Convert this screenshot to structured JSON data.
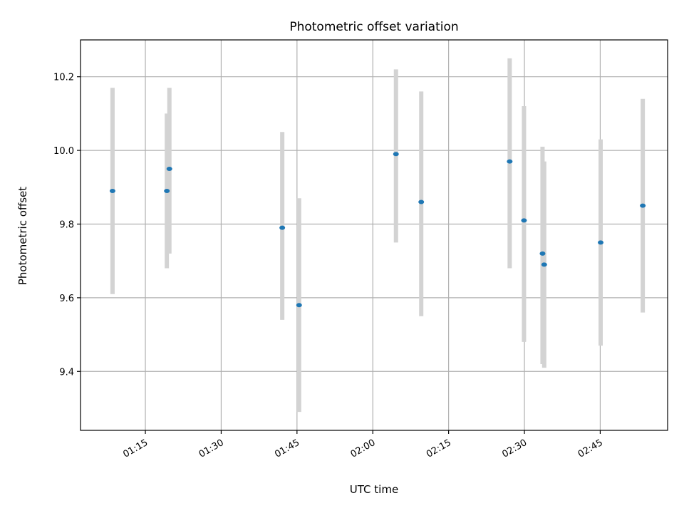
{
  "chart_data": {
    "type": "scatter",
    "title": "Photometric offset variation",
    "xlabel": "UTC time",
    "ylabel": "Photometric offset",
    "x_tick_labels": [
      "01:15",
      "01:30",
      "01:45",
      "02:00",
      "02:15",
      "02:30",
      "02:45"
    ],
    "y_tick_labels": [
      "9.4",
      "9.6",
      "9.8",
      "10.0",
      "10.2"
    ],
    "y_ticks": [
      9.4,
      9.6,
      9.8,
      10.0,
      10.2
    ],
    "xlim": [
      "01:02:10",
      "02:58:20"
    ],
    "ylim": [
      9.24,
      10.3
    ],
    "grid": true,
    "colors": {
      "marker": "#1f77b4",
      "errorbar": "#d3d3d3",
      "grid": "#b0b0b0"
    },
    "points": [
      {
        "time": "01:08:30",
        "y": 9.89,
        "ylow": 9.61,
        "yhigh": 10.17
      },
      {
        "time": "01:19:15",
        "y": 9.89,
        "ylow": 9.68,
        "yhigh": 10.1
      },
      {
        "time": "01:19:45",
        "y": 9.95,
        "ylow": 9.72,
        "yhigh": 10.17
      },
      {
        "time": "01:42:05",
        "y": 9.79,
        "ylow": 9.54,
        "yhigh": 10.05
      },
      {
        "time": "01:45:25",
        "y": 9.58,
        "ylow": 9.29,
        "yhigh": 9.87
      },
      {
        "time": "02:04:35",
        "y": 9.99,
        "ylow": 9.75,
        "yhigh": 10.22
      },
      {
        "time": "02:09:35",
        "y": 9.86,
        "ylow": 9.55,
        "yhigh": 10.16
      },
      {
        "time": "02:27:05",
        "y": 9.97,
        "ylow": 9.68,
        "yhigh": 10.25
      },
      {
        "time": "02:29:55",
        "y": 9.81,
        "ylow": 9.48,
        "yhigh": 10.12
      },
      {
        "time": "02:33:35",
        "y": 9.72,
        "ylow": 9.42,
        "yhigh": 10.01
      },
      {
        "time": "02:33:55",
        "y": 9.69,
        "ylow": 9.41,
        "yhigh": 9.97
      },
      {
        "time": "02:45:05",
        "y": 9.75,
        "ylow": 9.47,
        "yhigh": 10.03
      },
      {
        "time": "02:53:25",
        "y": 9.85,
        "ylow": 9.56,
        "yhigh": 10.14
      }
    ]
  }
}
